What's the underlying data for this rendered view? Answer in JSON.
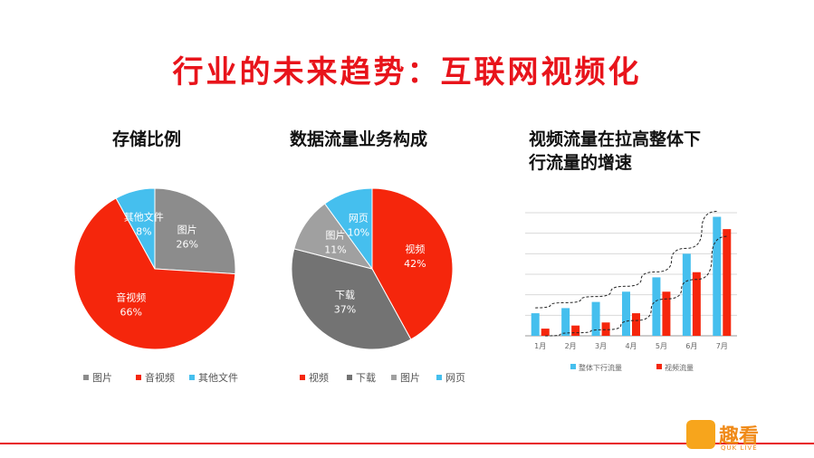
{
  "slide": {
    "title": "行业的未来趋势：互联网视频化"
  },
  "logo": {
    "text": "趣看",
    "sub": "QUK LIVE"
  },
  "chart_data": [
    {
      "type": "pie",
      "title": "存储比例",
      "slices": [
        {
          "name": "图片",
          "label": "图片",
          "pct_label": "26%",
          "value": 26,
          "color": "#8c8c8c"
        },
        {
          "name": "音视频",
          "label": "音视频",
          "pct_label": "66%",
          "value": 66,
          "color": "#f5260c"
        },
        {
          "name": "其他文件",
          "label": "其他文件",
          "pct_label": "8%",
          "value": 8,
          "color": "#45bfee"
        }
      ],
      "legend": [
        "图片",
        "音视频",
        "其他文件"
      ],
      "legend_position": "bottom"
    },
    {
      "type": "pie",
      "title": "数据流量业务构成",
      "slices": [
        {
          "name": "视频",
          "label": "视频",
          "pct_label": "42%",
          "value": 42,
          "color": "#f5260c"
        },
        {
          "name": "下载",
          "label": "下载",
          "pct_label": "37%",
          "value": 37,
          "color": "#737373"
        },
        {
          "name": "图片",
          "label": "图片",
          "pct_label": "11%",
          "value": 11,
          "color": "#a0a0a0"
        },
        {
          "name": "网页",
          "label": "网页",
          "pct_label": "10%",
          "value": 10,
          "color": "#45bfee"
        }
      ],
      "legend": [
        "视频",
        "下载",
        "图片",
        "网页"
      ],
      "legend_position": "bottom"
    },
    {
      "type": "bar",
      "title_lines": [
        "视频流量在拉高整体下",
        "行流量的增速"
      ],
      "categories": [
        "1月",
        "2月",
        "3月",
        "4月",
        "5月",
        "6月",
        "7月"
      ],
      "series": [
        {
          "name": "整体下行流量",
          "values": [
            22,
            27,
            33,
            43,
            57,
            80,
            116
          ],
          "color": "#45bfee"
        },
        {
          "name": "视频流量",
          "values": [
            7,
            10,
            13,
            22,
            43,
            62,
            104
          ],
          "color": "#f5260c"
        }
      ],
      "ylim": [
        0,
        120
      ],
      "grid": true,
      "trendlines": true,
      "legend_position": "bottom"
    }
  ]
}
